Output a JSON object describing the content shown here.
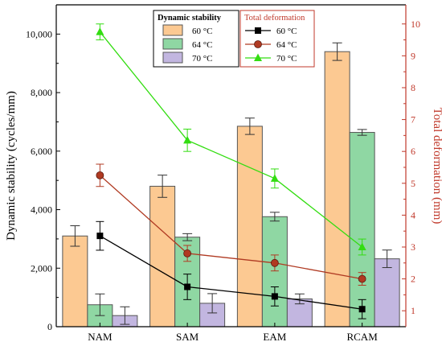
{
  "chart_data": {
    "type": "bar",
    "categories": [
      "NAM",
      "SAM",
      "EAM",
      "RCAM"
    ],
    "y_left": {
      "label": "Dynamic stability (cycles/mm)",
      "lim": [
        0,
        11000
      ],
      "ticks": [
        0,
        2000,
        4000,
        6000,
        8000,
        10000
      ],
      "tick_labels": [
        "0",
        "2,000",
        "4,000",
        "6,000",
        "8,000",
        "10,000"
      ]
    },
    "y_right": {
      "label": "Total deformation (mm)",
      "lim": [
        0.5,
        10.6
      ],
      "ticks": [
        1,
        2,
        3,
        4,
        5,
        6,
        7,
        8,
        9,
        10
      ],
      "tick_labels": [
        "1",
        "2",
        "3",
        "4",
        "5",
        "6",
        "7",
        "8",
        "9",
        "10"
      ],
      "color": "#c0392b"
    },
    "bar_series": [
      {
        "name": "60 °C",
        "color": "#fcc992",
        "values": [
          3100,
          4800,
          6850,
          9400
        ],
        "errors": [
          350,
          380,
          280,
          300
        ]
      },
      {
        "name": "64 °C",
        "color": "#8fd7a3",
        "values": [
          750,
          3060,
          3760,
          6640
        ],
        "errors": [
          370,
          120,
          150,
          100
        ]
      },
      {
        "name": "70 °C",
        "color": "#c2b6e0",
        "values": [
          380,
          800,
          950,
          2320
        ],
        "errors": [
          300,
          330,
          170,
          300
        ]
      }
    ],
    "line_series": [
      {
        "name": "60 °C",
        "color": "#000000",
        "marker": "square",
        "values": [
          3.35,
          1.75,
          1.45,
          1.05
        ],
        "errors": [
          0.45,
          0.4,
          0.3,
          0.3
        ]
      },
      {
        "name": "64 °C",
        "color": "#b03a22",
        "marker": "circle",
        "values": [
          5.25,
          2.8,
          2.5,
          2.0
        ],
        "errors": [
          0.35,
          0.25,
          0.25,
          0.2
        ]
      },
      {
        "name": "70 °C",
        "color": "#33dd11",
        "marker": "triangle",
        "values": [
          9.75,
          6.35,
          5.15,
          3.0
        ],
        "errors": [
          0.25,
          0.35,
          0.3,
          0.25
        ]
      }
    ],
    "legend_bars_title": "Dynamic stability",
    "legend_lines_title": "Total deformation",
    "grid": false
  }
}
